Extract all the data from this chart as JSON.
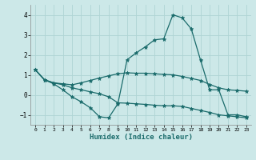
{
  "title": "",
  "xlabel": "Humidex (Indice chaleur)",
  "ylabel": "",
  "background_color": "#cce8e8",
  "line_color": "#1a6b6b",
  "grid_color": "#afd4d4",
  "xlim": [
    -0.5,
    23.5
  ],
  "ylim": [
    -1.5,
    4.5
  ],
  "yticks": [
    -1,
    0,
    1,
    2,
    3,
    4
  ],
  "xticks": [
    0,
    1,
    2,
    3,
    4,
    5,
    6,
    7,
    8,
    9,
    10,
    11,
    12,
    13,
    14,
    15,
    16,
    17,
    18,
    19,
    20,
    21,
    22,
    23
  ],
  "series": [
    [
      1.25,
      0.75,
      0.6,
      0.55,
      0.5,
      0.6,
      0.72,
      0.84,
      0.95,
      1.05,
      1.1,
      1.08,
      1.08,
      1.05,
      1.02,
      1.0,
      0.92,
      0.82,
      0.72,
      0.52,
      0.35,
      0.25,
      0.22,
      0.18
    ],
    [
      1.25,
      0.75,
      0.6,
      0.5,
      0.35,
      0.25,
      0.15,
      0.05,
      -0.1,
      -0.4,
      -0.42,
      -0.45,
      -0.48,
      -0.52,
      -0.55,
      -0.55,
      -0.58,
      -0.68,
      -0.78,
      -0.88,
      -1.0,
      -1.05,
      -1.1,
      -1.15
    ],
    [
      1.25,
      0.75,
      0.55,
      0.25,
      -0.1,
      -0.35,
      -0.65,
      -1.1,
      -1.15,
      -0.45,
      1.75,
      2.1,
      2.4,
      2.75,
      2.8,
      4.0,
      3.85,
      3.3,
      1.75,
      0.25,
      0.25,
      -1.0,
      -1.0,
      -1.1
    ]
  ]
}
